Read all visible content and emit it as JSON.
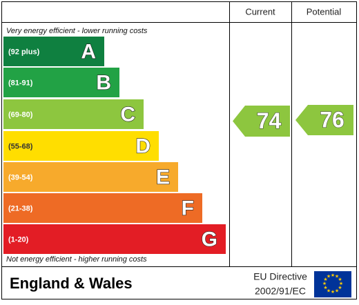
{
  "header": {
    "current": "Current",
    "potential": "Potential"
  },
  "top_note": "Very energy efficient - lower running costs",
  "bottom_note": "Not energy efficient - higher running costs",
  "bands": [
    {
      "range": "(92 plus)",
      "letter": "A",
      "color": "#0f8040"
    },
    {
      "range": "(81-91)",
      "letter": "B",
      "color": "#22a245"
    },
    {
      "range": "(69-80)",
      "letter": "C",
      "color": "#8dc63f"
    },
    {
      "range": "(55-68)",
      "letter": "D",
      "color": "#ffde00"
    },
    {
      "range": "(39-54)",
      "letter": "E",
      "color": "#f7aa2c"
    },
    {
      "range": "(21-38)",
      "letter": "F",
      "color": "#ee6b25"
    },
    {
      "range": "(1-20)",
      "letter": "G",
      "color": "#e31d25"
    }
  ],
  "current": {
    "value": 74,
    "color": "#8dc63f"
  },
  "potential": {
    "value": 76,
    "color": "#8dc63f"
  },
  "footer": {
    "region": "England & Wales",
    "directive": "EU Directive",
    "code": "2002/91/EC"
  }
}
